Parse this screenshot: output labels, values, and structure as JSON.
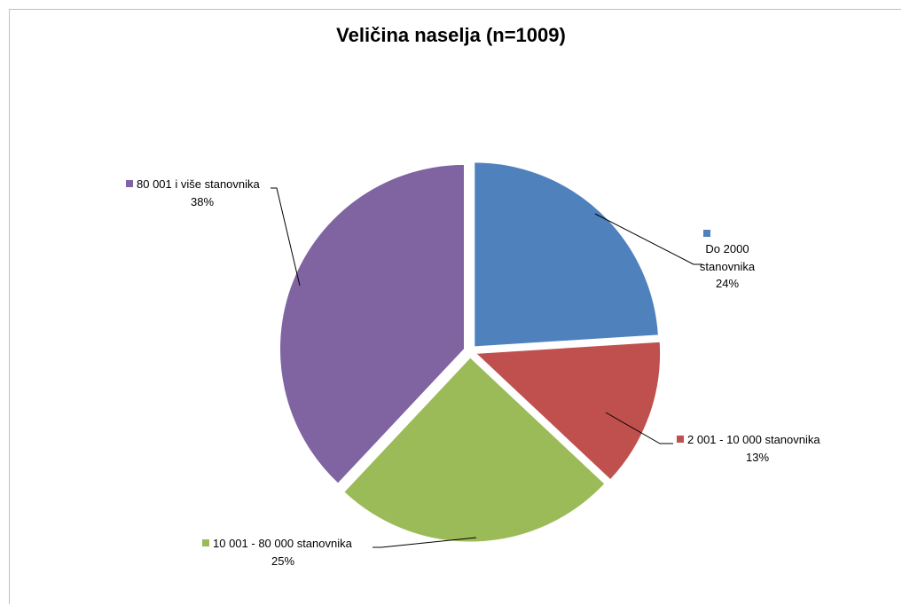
{
  "chart_data": {
    "type": "pie",
    "title": "Veličina naselja (n=1009)",
    "slices": [
      {
        "label": "Do 2000 stanovnika",
        "value": 24,
        "value_text": "24%",
        "color": "#4F81BD"
      },
      {
        "label": "2 001 - 10 000 stanovnika",
        "value": 13,
        "value_text": "13%",
        "color": "#C0504D"
      },
      {
        "label": "10 001 - 80 000 stanovnika",
        "value": 25,
        "value_text": "25%",
        "color": "#9BBB59"
      },
      {
        "label": "80 001 i više stanovnika",
        "value": 38,
        "value_text": "38%",
        "color": "#8064A2"
      }
    ],
    "legend": "none",
    "exploded": true
  }
}
